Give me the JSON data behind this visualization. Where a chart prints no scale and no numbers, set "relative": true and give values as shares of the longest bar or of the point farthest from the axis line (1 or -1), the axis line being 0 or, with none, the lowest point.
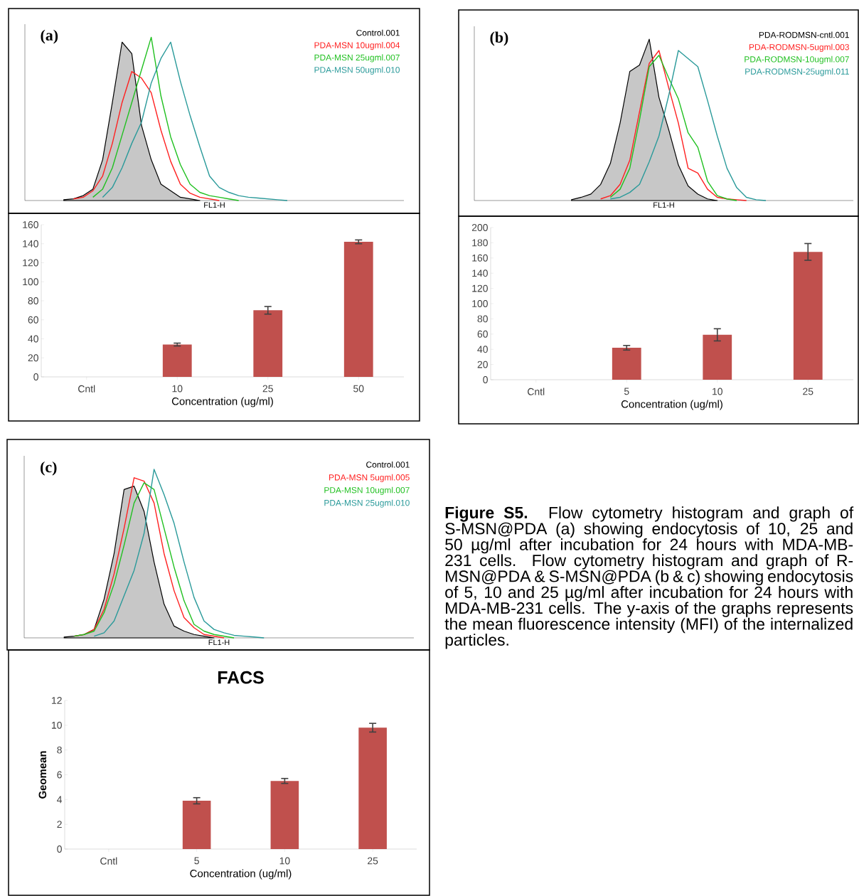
{
  "chart_data": [
    {
      "type": "line",
      "relative": true,
      "xlabel": "FL1-H",
      "annotations": [
        "(a)"
      ],
      "categories": [
        null,
        null,
        null,
        null,
        null,
        null,
        null,
        null,
        null,
        null,
        null,
        null,
        null,
        null,
        null,
        null,
        null,
        null,
        null,
        null,
        null,
        null,
        null,
        null,
        null,
        null,
        null,
        null,
        null,
        null,
        null,
        null,
        null,
        null,
        null,
        null,
        null,
        null,
        null,
        null
      ],
      "series": [
        {
          "name": "Control.001",
          "type": "area",
          "color": "#000000",
          "values": [
            null,
            null,
            null,
            null,
            0.005,
            0.01,
            0.03,
            0.07,
            0.25,
            0.6,
            0.97,
            0.9,
            0.46,
            0.25,
            0.1,
            0.06,
            0.02,
            0.01,
            0,
            null,
            null,
            null,
            null,
            null,
            null,
            null,
            null,
            null,
            null,
            null,
            null,
            null,
            null,
            null,
            null,
            null,
            null,
            null,
            null,
            null
          ]
        },
        {
          "name": "PDA-MSN 10ugml.004",
          "color": "#ff2020",
          "values": [
            null,
            null,
            null,
            null,
            null,
            0.01,
            0.02,
            0.06,
            0.15,
            0.35,
            0.6,
            0.79,
            0.75,
            0.66,
            0.43,
            0.24,
            0.1,
            0.045,
            0.02,
            0.01,
            0,
            null,
            null,
            null,
            null,
            null,
            null,
            null,
            null,
            null,
            null,
            null,
            null,
            null,
            null,
            null,
            null,
            null,
            null,
            null
          ]
        },
        {
          "name": "PDA-MSN 25ugml.007",
          "color": "#20c020",
          "values": [
            null,
            null,
            null,
            null,
            null,
            null,
            null,
            0.02,
            0.07,
            0.2,
            0.4,
            0.6,
            0.8,
            1.0,
            0.64,
            0.39,
            0.22,
            0.1,
            0.05,
            0.03,
            0.02,
            0.01,
            0,
            null,
            null,
            null,
            null,
            null,
            null,
            null,
            null,
            null,
            null,
            null,
            null,
            null,
            null,
            null,
            null,
            null
          ]
        },
        {
          "name": "PDA-MSN 50ugml.010",
          "color": "#2a9a9a",
          "values": [
            null,
            null,
            null,
            null,
            null,
            null,
            null,
            null,
            0.02,
            0.08,
            0.2,
            0.35,
            0.48,
            0.72,
            0.87,
            0.97,
            0.73,
            0.52,
            0.33,
            0.15,
            0.08,
            0.05,
            0.03,
            0.02,
            0.015,
            0.01,
            0.005,
            0,
            null,
            null,
            null,
            null,
            null,
            null,
            null,
            null,
            null,
            null,
            null,
            null
          ]
        }
      ]
    },
    {
      "type": "bar",
      "xlabel": "Concentration (ug/ml)",
      "categories": [
        "Cntl",
        "10",
        "25",
        "50"
      ],
      "values": [
        null,
        34,
        70,
        142
      ],
      "errors": [
        null,
        1.5,
        4,
        2
      ],
      "color": "#c0504d",
      "ylim": [
        0,
        160
      ],
      "yticks": [
        0,
        20,
        40,
        60,
        80,
        100,
        120,
        140,
        160
      ]
    },
    {
      "type": "line",
      "relative": true,
      "xlabel": "FL1-H",
      "annotations": [
        "(b)"
      ],
      "categories": [
        null,
        null,
        null,
        null,
        null,
        null,
        null,
        null,
        null,
        null,
        null,
        null,
        null,
        null,
        null,
        null,
        null,
        null,
        null,
        null,
        null,
        null,
        null,
        null,
        null,
        null,
        null,
        null,
        null,
        null,
        null,
        null,
        null,
        null,
        null,
        null,
        null,
        null,
        null,
        null
      ],
      "series": [
        {
          "name": "PDA-RODMSN-cntl.001",
          "type": "area",
          "color": "#000000",
          "values": [
            null,
            null,
            null,
            null,
            null,
            null,
            null,
            null,
            null,
            null,
            0.005,
            0.02,
            0.04,
            0.1,
            0.23,
            0.48,
            0.8,
            0.84,
            1.0,
            0.64,
            0.44,
            0.22,
            0.09,
            0.04,
            0.01,
            0,
            null,
            null,
            null,
            null,
            null,
            null,
            null,
            null,
            null,
            null,
            null,
            null,
            null,
            null
          ]
        },
        {
          "name": "PDA-RODMSN-5ugml.003",
          "color": "#ff2020",
          "values": [
            null,
            null,
            null,
            null,
            null,
            null,
            null,
            null,
            null,
            null,
            null,
            null,
            null,
            0.01,
            0.03,
            0.1,
            0.25,
            0.55,
            0.85,
            0.93,
            0.7,
            0.48,
            0.2,
            0.17,
            0.07,
            0.02,
            0.01,
            0.005,
            0,
            null,
            null,
            null,
            null,
            null,
            null,
            null,
            null,
            null,
            null,
            null
          ]
        },
        {
          "name": "PDA-RODMSN-10ugml.007",
          "color": "#20c020",
          "values": [
            null,
            null,
            null,
            null,
            null,
            null,
            null,
            null,
            null,
            null,
            null,
            null,
            null,
            null,
            0.02,
            0.07,
            0.2,
            0.5,
            0.83,
            0.9,
            0.76,
            0.63,
            0.42,
            0.33,
            0.12,
            0.03,
            0.01,
            0,
            null,
            null,
            null,
            null,
            null,
            null,
            null,
            null,
            null,
            null,
            null,
            null
          ]
        },
        {
          "name": "PDA-RODMSN-25ugml.011",
          "color": "#2a9a9a",
          "values": [
            null,
            null,
            null,
            null,
            null,
            null,
            null,
            null,
            null,
            null,
            null,
            null,
            null,
            null,
            0.01,
            0.02,
            0.05,
            0.1,
            0.24,
            0.4,
            0.65,
            0.93,
            0.88,
            0.83,
            0.62,
            0.4,
            0.2,
            0.08,
            0.02,
            0.005,
            0,
            null,
            null,
            null,
            null,
            null,
            null,
            null,
            null,
            null
          ]
        }
      ]
    },
    {
      "type": "bar",
      "xlabel": "Concentration (ug/ml)",
      "categories": [
        "Cntl",
        "5",
        "10",
        "25"
      ],
      "values": [
        null,
        42,
        59,
        168
      ],
      "errors": [
        null,
        3,
        8,
        11
      ],
      "color": "#c0504d",
      "ylim": [
        0,
        200
      ],
      "yticks": [
        0,
        20,
        40,
        60,
        80,
        100,
        120,
        140,
        160,
        180,
        200
      ]
    },
    {
      "type": "line",
      "relative": true,
      "xlabel": "FL1-H",
      "annotations": [
        "(c)"
      ],
      "categories": [
        null,
        null,
        null,
        null,
        null,
        null,
        null,
        null,
        null,
        null,
        null,
        null,
        null,
        null,
        null,
        null,
        null,
        null,
        null,
        null,
        null,
        null,
        null,
        null,
        null,
        null,
        null,
        null,
        null,
        null,
        null,
        null,
        null,
        null,
        null,
        null,
        null,
        null,
        null,
        null
      ],
      "series": [
        {
          "name": "Control.001",
          "type": "area",
          "color": "#000000",
          "values": [
            null,
            null,
            null,
            null,
            0.005,
            0.01,
            0.02,
            0.05,
            0.23,
            0.5,
            0.88,
            0.9,
            0.75,
            0.45,
            0.2,
            0.07,
            0.04,
            0.02,
            0.01,
            0,
            null,
            null,
            null,
            null,
            null,
            null,
            null,
            null,
            null,
            null,
            null,
            null,
            null,
            null,
            null,
            null,
            null,
            null,
            null,
            null
          ]
        },
        {
          "name": "PDA-MSN 5ugml.005",
          "color": "#ff2020",
          "values": [
            null,
            null,
            null,
            null,
            null,
            0.01,
            0.02,
            0.05,
            0.17,
            0.38,
            0.65,
            0.95,
            0.93,
            0.8,
            0.5,
            0.28,
            0.12,
            0.06,
            0.02,
            0.01,
            0,
            null,
            null,
            null,
            null,
            null,
            null,
            null,
            null,
            null,
            null,
            null,
            null,
            null,
            null,
            null,
            null,
            null,
            null,
            null
          ]
        },
        {
          "name": "PDA-MSN 10ugml.007",
          "color": "#20c020",
          "values": [
            null,
            null,
            null,
            null,
            null,
            0.01,
            0.02,
            0.04,
            0.15,
            0.32,
            0.55,
            0.8,
            0.92,
            0.88,
            0.65,
            0.42,
            0.22,
            0.08,
            0.04,
            0.02,
            0.01,
            0,
            null,
            null,
            null,
            null,
            null,
            null,
            null,
            null,
            null,
            null,
            null,
            null,
            null,
            null,
            null,
            null,
            null,
            null
          ]
        },
        {
          "name": "PDA-MSN 25ugml.010",
          "color": "#2a9a9a",
          "values": [
            null,
            null,
            null,
            null,
            null,
            null,
            null,
            0.01,
            0.03,
            0.1,
            0.25,
            0.4,
            0.62,
            1.0,
            0.85,
            0.68,
            0.45,
            0.24,
            0.1,
            0.05,
            0.03,
            0.015,
            0.01,
            0.005,
            0,
            null,
            null,
            null,
            null,
            null,
            null,
            null,
            null,
            null,
            null,
            null,
            null,
            null,
            null,
            null
          ]
        }
      ]
    },
    {
      "type": "bar",
      "title": "FACS",
      "ylabel": "Geomean",
      "xlabel": "Concentration (ug/ml)",
      "categories": [
        "Cntl",
        "5",
        "10",
        "25"
      ],
      "values": [
        null,
        3.9,
        5.5,
        9.8
      ],
      "errors": [
        null,
        0.25,
        0.2,
        0.35
      ],
      "color": "#c0504d",
      "ylim": [
        0,
        12
      ],
      "yticks": [
        0,
        2,
        4,
        6,
        8,
        10,
        12
      ]
    },
    {
      "type": "other",
      "annotations": [
        "**Figure S5.** Flow cytometry histogram and graph of S-MSN@PDA (a) showing endocytosis of 10, 25 and 50 µg/ml after incubation for 24 hours with MDA-MB-231 cells. Flow cytometry histogram and graph of R-MSN@PDA & S-MSN@PDA (b & c) showing endocytosis of 5, 10 and 25 µg/ml after incubation for 24 hours with MDA-MB-231 cells. The y-axis of the graphs represents the mean fluorescence intensity (MFI) of the internalized particles."
      ]
    }
  ]
}
